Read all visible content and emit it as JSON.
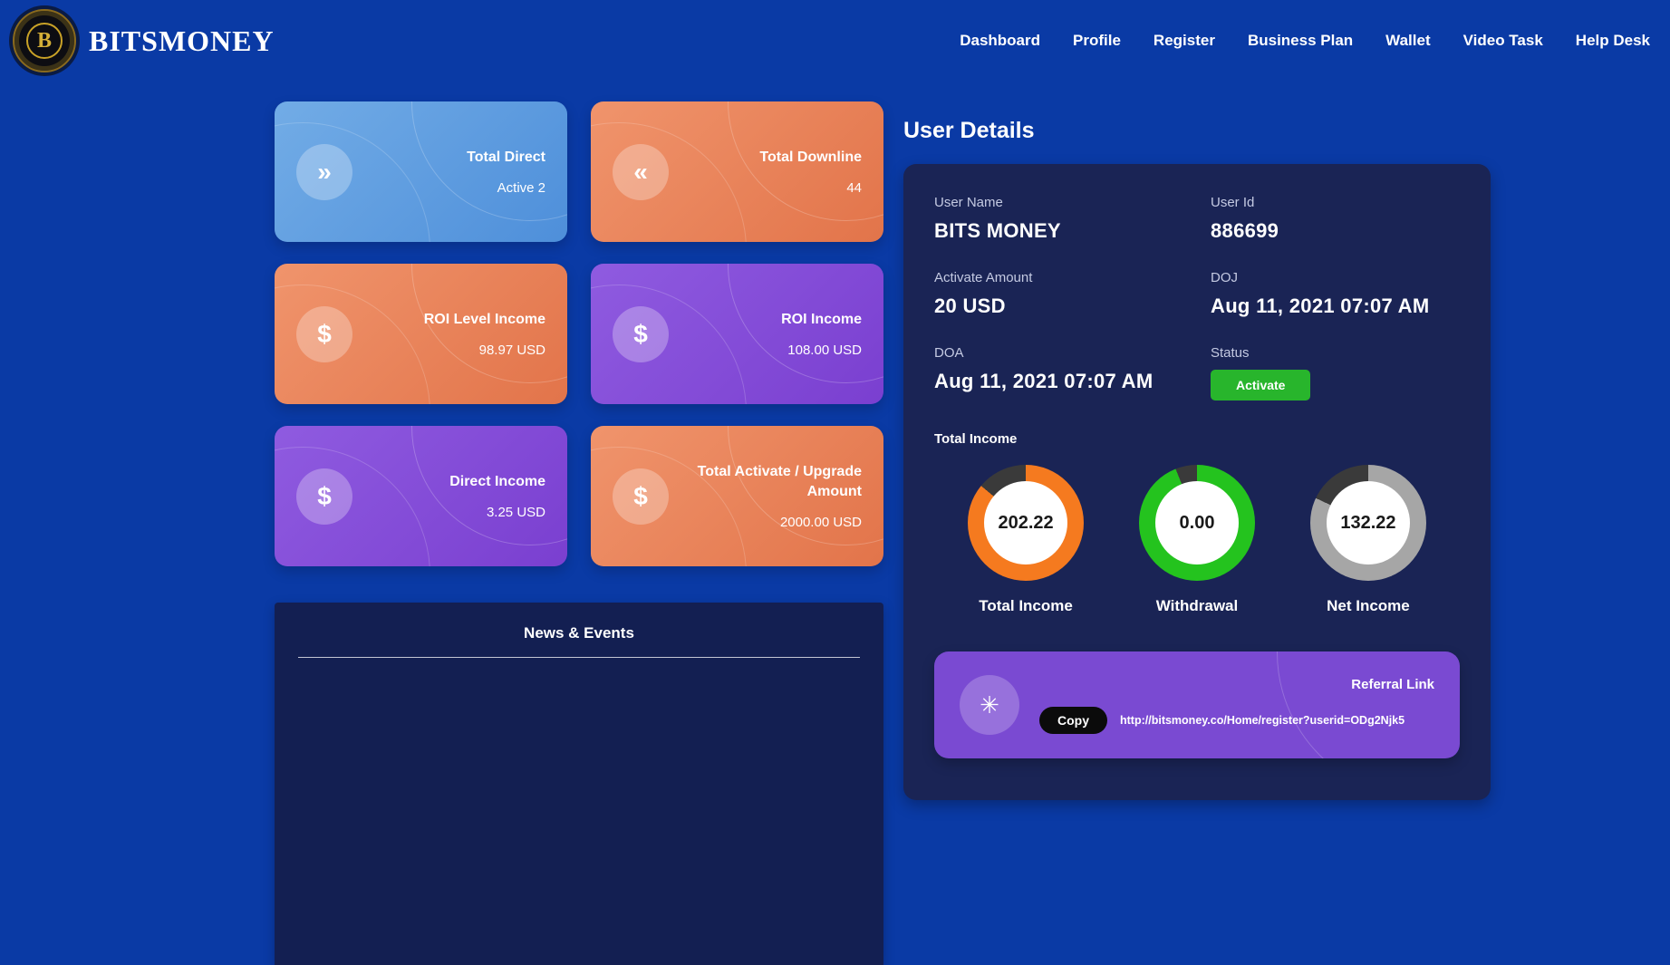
{
  "colors": {
    "page_bg": "#0a3aa5",
    "panel_navy": "#1a2455",
    "card_blue": "#5f9fe0",
    "card_orange": "#e8835c",
    "card_purple": "#8450d8",
    "status_green": "#28b52c",
    "referral_purple": "#7a4ad2",
    "brand_gold": "#d4af37"
  },
  "brand": {
    "name": "BITSMONEY",
    "logo_letter": "B"
  },
  "nav": {
    "items": [
      "Dashboard",
      "Profile",
      "Register",
      "Business Plan",
      "Wallet",
      "Video Task",
      "Help Desk"
    ]
  },
  "cards": [
    {
      "title": "Total Direct",
      "value": "Active 2",
      "icon": "»",
      "theme": "blue"
    },
    {
      "title": "Total Downline",
      "value": "44",
      "icon": "«",
      "theme": "orange"
    },
    {
      "title": "ROI Level Income",
      "value": "98.97 USD",
      "icon": "$",
      "theme": "orange"
    },
    {
      "title": "ROI Income",
      "value": "108.00 USD",
      "icon": "$",
      "theme": "purple"
    },
    {
      "title": "Direct Income",
      "value": "3.25 USD",
      "icon": "$",
      "theme": "purple"
    },
    {
      "title": "Total Activate / Upgrade Amount",
      "value": "2000.00 USD",
      "icon": "$",
      "theme": "orange"
    }
  ],
  "news": {
    "title": "News & Events"
  },
  "user_details": {
    "title": "User Details",
    "fields": [
      {
        "label": "User Name",
        "value": "BITS MONEY"
      },
      {
        "label": "User Id",
        "value": "886699"
      },
      {
        "label": "Activate Amount",
        "value": "20 USD"
      },
      {
        "label": "DOJ",
        "value": "Aug 11, 2021 07:07 AM"
      },
      {
        "label": "DOA",
        "value": "Aug 11, 2021 07:07 AM"
      },
      {
        "label": "Status",
        "value": "Activate"
      }
    ],
    "total_income_label": "Total Income",
    "gauges": [
      {
        "value": "202.22",
        "label": "Total Income",
        "color": "#f57a1f",
        "track": "#3a3a3a",
        "percent": 86
      },
      {
        "value": "0.00",
        "label": "Withdrawal",
        "color": "#24c31e",
        "track": "#3a3a3a",
        "percent": 94
      },
      {
        "value": "132.22",
        "label": "Net Income",
        "color": "#a6a6a6",
        "track": "#3a3a3a",
        "percent": 82
      }
    ],
    "referral": {
      "label": "Referral Link",
      "copy_label": "Copy",
      "icon_glyph": "✳",
      "url": "http://bitsmoney.co/Home/register?userid=ODg2Njk5"
    }
  }
}
